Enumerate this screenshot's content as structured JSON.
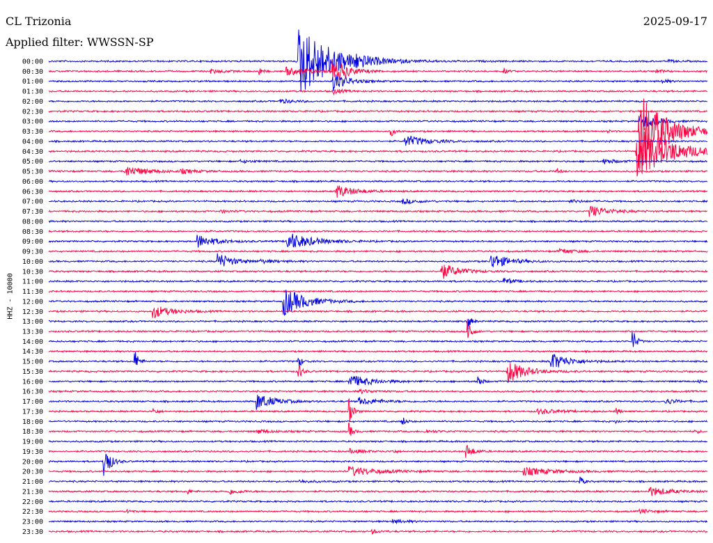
{
  "header": {
    "station": "CL Trizonia",
    "filter_label": "Applied filter: WWSSN-SP",
    "date": "2025-09-17"
  },
  "chart_data": {
    "type": "line",
    "title": "",
    "ylabel": "HHZ - 10000",
    "colors": [
      "#0000dd",
      "#ff0040"
    ],
    "rows": [
      {
        "label": "00:00",
        "events": [
          [
            0.378,
            55,
            0.045
          ],
          [
            0.405,
            3,
            0.01
          ],
          [
            0.46,
            5,
            0.025
          ],
          [
            0.94,
            2,
            0.01
          ]
        ]
      },
      {
        "label": "00:30",
        "events": [
          [
            0.245,
            3,
            0.02
          ],
          [
            0.318,
            7,
            0.005
          ],
          [
            0.36,
            6,
            0.03
          ],
          [
            0.43,
            20,
            0.02
          ],
          [
            0.69,
            5,
            0.005
          ],
          [
            0.92,
            3,
            0.01
          ]
        ]
      },
      {
        "label": "01:00",
        "events": [
          [
            0.43,
            15,
            0.02
          ],
          [
            0.93,
            4,
            0.008
          ]
        ]
      },
      {
        "label": "01:30",
        "events": [
          [
            0.43,
            4,
            0.015
          ]
        ]
      },
      {
        "label": "02:00",
        "events": [
          [
            0.35,
            3,
            0.02
          ]
        ]
      },
      {
        "label": "02:30",
        "events": []
      },
      {
        "label": "03:00",
        "events": [
          [
            0.895,
            14,
            0.02
          ]
        ]
      },
      {
        "label": "03:30",
        "events": [
          [
            0.518,
            10,
            0.005
          ],
          [
            0.845,
            3,
            0.005
          ],
          [
            0.895,
            58,
            0.04
          ]
        ]
      },
      {
        "label": "04:00",
        "events": [
          [
            0.54,
            9,
            0.03
          ]
        ]
      },
      {
        "label": "04:30",
        "events": [
          [
            0.89,
            40,
            0.05
          ]
        ]
      },
      {
        "label": "05:00",
        "events": [
          [
            0.29,
            2,
            0.02
          ],
          [
            0.84,
            4,
            0.02
          ]
        ]
      },
      {
        "label": "05:30",
        "events": [
          [
            0.115,
            8,
            0.03
          ],
          [
            0.2,
            3,
            0.02
          ],
          [
            0.77,
            6,
            0.005
          ]
        ]
      },
      {
        "label": "06:00",
        "events": []
      },
      {
        "label": "06:30",
        "events": [
          [
            0.435,
            10,
            0.025
          ]
        ]
      },
      {
        "label": "07:00",
        "events": [
          [
            0.535,
            4,
            0.02
          ],
          [
            0.79,
            2,
            0.02
          ]
        ]
      },
      {
        "label": "07:30",
        "events": [
          [
            0.26,
            2,
            0.015
          ],
          [
            0.82,
            9,
            0.025
          ]
        ]
      },
      {
        "label": "08:00",
        "events": []
      },
      {
        "label": "08:30",
        "events": []
      },
      {
        "label": "09:00",
        "events": [
          [
            0.225,
            10,
            0.025
          ],
          [
            0.36,
            14,
            0.035
          ]
        ]
      },
      {
        "label": "09:30",
        "events": [
          [
            0.775,
            4,
            0.02
          ]
        ]
      },
      {
        "label": "10:00",
        "events": [
          [
            0.255,
            13,
            0.02
          ],
          [
            0.32,
            2,
            0.03
          ],
          [
            0.67,
            12,
            0.025
          ]
        ]
      },
      {
        "label": "10:30",
        "events": [
          [
            0.595,
            12,
            0.025
          ]
        ]
      },
      {
        "label": "11:00",
        "events": [
          [
            0.69,
            5,
            0.015
          ]
        ]
      },
      {
        "label": "11:30",
        "events": []
      },
      {
        "label": "12:00",
        "events": [
          [
            0.355,
            22,
            0.03
          ]
        ]
      },
      {
        "label": "12:30",
        "events": [
          [
            0.157,
            10,
            0.025
          ]
        ]
      },
      {
        "label": "13:00",
        "events": [
          [
            0.635,
            14,
            0.005
          ]
        ]
      },
      {
        "label": "13:30",
        "events": [
          [
            0.635,
            28,
            0.005
          ]
        ]
      },
      {
        "label": "14:00",
        "events": [
          [
            0.885,
            26,
            0.005
          ]
        ]
      },
      {
        "label": "14:30",
        "events": []
      },
      {
        "label": "15:00",
        "events": [
          [
            0.13,
            20,
            0.005
          ],
          [
            0.378,
            12,
            0.005
          ],
          [
            0.76,
            14,
            0.025
          ]
        ]
      },
      {
        "label": "15:30",
        "events": [
          [
            0.378,
            16,
            0.005
          ],
          [
            0.695,
            18,
            0.025
          ]
        ]
      },
      {
        "label": "16:00",
        "events": [
          [
            0.455,
            10,
            0.03
          ],
          [
            0.65,
            14,
            0.005
          ],
          [
            0.985,
            2,
            0.01
          ]
        ]
      },
      {
        "label": "16:30",
        "events": [
          [
            0.47,
            3,
            0.02
          ]
        ]
      },
      {
        "label": "17:00",
        "events": [
          [
            0.315,
            12,
            0.025
          ],
          [
            0.47,
            5,
            0.03
          ],
          [
            0.935,
            5,
            0.015
          ]
        ]
      },
      {
        "label": "17:30",
        "events": [
          [
            0.158,
            6,
            0.005
          ],
          [
            0.455,
            25,
            0.005
          ],
          [
            0.74,
            4,
            0.03
          ],
          [
            0.86,
            7,
            0.005
          ]
        ]
      },
      {
        "label": "18:00",
        "events": [
          [
            0.535,
            10,
            0.005
          ],
          [
            0.86,
            3,
            0.005
          ]
        ]
      },
      {
        "label": "18:30",
        "events": [
          [
            0.455,
            13,
            0.005
          ],
          [
            0.315,
            3,
            0.02
          ],
          [
            0.57,
            2,
            0.02
          ],
          [
            0.98,
            4,
            0.005
          ]
        ]
      },
      {
        "label": "19:00",
        "events": []
      },
      {
        "label": "19:30",
        "events": [
          [
            0.457,
            3,
            0.02
          ],
          [
            0.52,
            4,
            0.005
          ],
          [
            0.632,
            12,
            0.01
          ]
        ]
      },
      {
        "label": "20:00",
        "events": [
          [
            0.082,
            38,
            0.008
          ]
        ]
      },
      {
        "label": "20:30",
        "events": [
          [
            0.455,
            7,
            0.04
          ],
          [
            0.72,
            6,
            0.04
          ]
        ]
      },
      {
        "label": "21:00",
        "events": [
          [
            0.38,
            2,
            0.02
          ],
          [
            0.805,
            10,
            0.005
          ]
        ]
      },
      {
        "label": "21:30",
        "events": [
          [
            0.21,
            4,
            0.005
          ],
          [
            0.272,
            5,
            0.015
          ],
          [
            0.91,
            7,
            0.03
          ]
        ]
      },
      {
        "label": "22:00",
        "events": []
      },
      {
        "label": "22:30",
        "events": [
          [
            0.118,
            5,
            0.005
          ],
          [
            0.895,
            3,
            0.02
          ]
        ]
      },
      {
        "label": "23:00",
        "events": [
          [
            0.52,
            3,
            0.02
          ]
        ]
      },
      {
        "label": "23:30",
        "events": [
          [
            0.49,
            3,
            0.01
          ]
        ]
      }
    ]
  }
}
